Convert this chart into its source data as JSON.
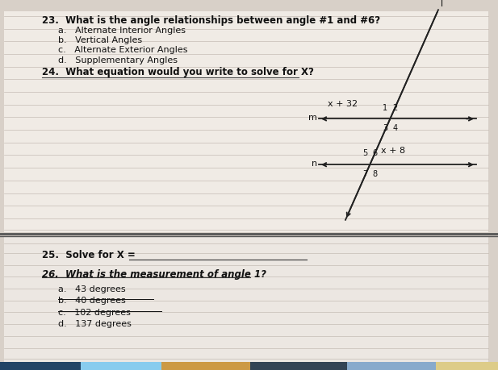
{
  "bg_upper": "#d8d0c8",
  "bg_paper": "#f0ebe5",
  "bg_lower": "#e0dbd5",
  "text_color": "#111111",
  "title_q23": "23.  What is the angle relationships between angle #1 and #6?",
  "options_q23": [
    "a.   Alternate Interior Angles",
    "b.   Vertical Angles",
    "c.   Alternate Exterior Angles",
    "d.   Supplementary Angles"
  ],
  "q24": "24.  What equation would you write to solve for X?",
  "q25": "25.  Solve for X = ",
  "q26": "26.  What is the measurement of angle 1?",
  "options_q26": [
    "a.   43 degrees",
    "b.   40 degrees",
    "c.   102 degrees",
    "d.   137 degrees"
  ],
  "top_expr": "x + 32",
  "bot_expr": "x + 8",
  "line_color": "#222222",
  "notebook_line_color": "#c5bdb5",
  "separator_color": "#555555",
  "photo_colors": [
    "#88ccee",
    "#cc8844",
    "#336688",
    "#ddaa66",
    "#88aacc"
  ],
  "m_label": "m",
  "n_label": "n",
  "l_label": "l"
}
